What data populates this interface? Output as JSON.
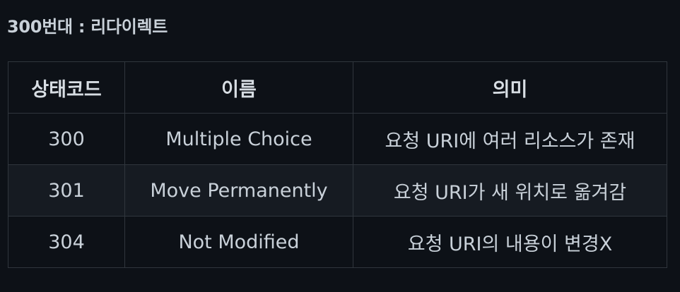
{
  "heading": "300번대 : 리다이렉트",
  "table": {
    "headers": [
      "상태코드",
      "이름",
      "의미"
    ],
    "rows": [
      {
        "code": "300",
        "name": "Multiple Choice",
        "meaning": "요청 URI에 여러 리소스가 존재"
      },
      {
        "code": "301",
        "name": "Move Permanently",
        "meaning": "요청 URI가 새 위치로 옮겨감"
      },
      {
        "code": "304",
        "name": "Not Modified",
        "meaning": "요청 URI의 내용이 변경X"
      }
    ]
  },
  "colors": {
    "background": "#0d1117",
    "row_alt": "#161b22",
    "border": "#30363d",
    "text": "#c9d1d9"
  }
}
